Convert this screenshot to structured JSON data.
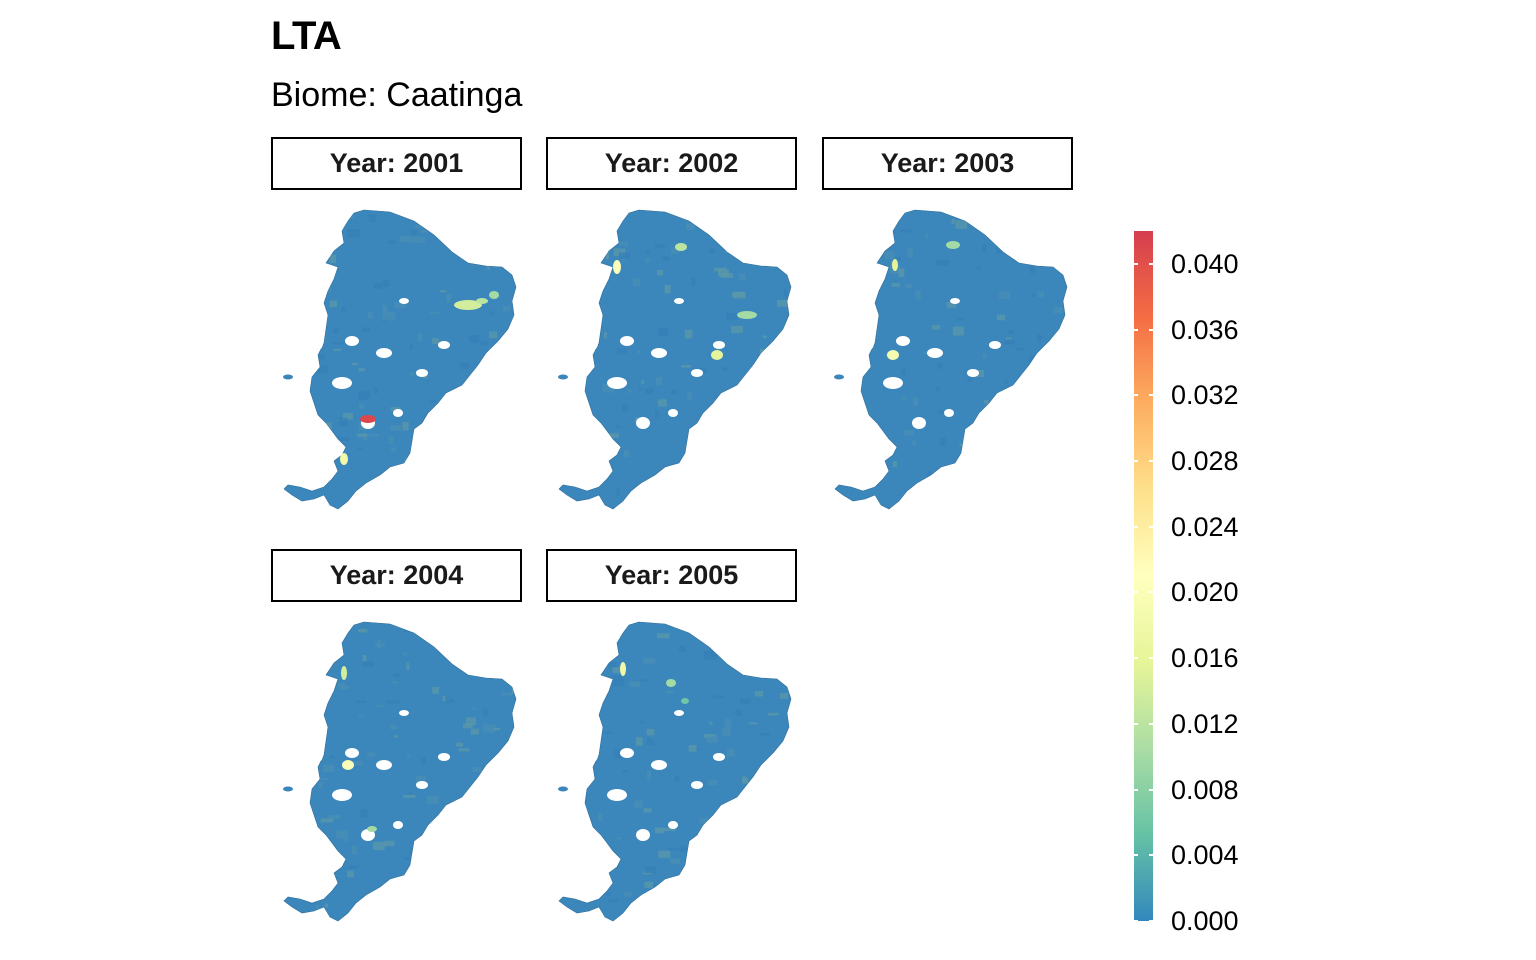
{
  "title": "LTA",
  "subtitle": "Biome: Caatinga",
  "chart_data": {
    "type": "choropleth-facet",
    "title": "LTA",
    "subtitle": "Biome: Caatinga",
    "facets": [
      {
        "label": "Year: 2001",
        "max_value": 0.041,
        "highlights": [
          {
            "value": 0.041
          },
          {
            "value": 0.018
          },
          {
            "value": 0.014
          },
          {
            "value": 0.012
          },
          {
            "value": 0.01
          }
        ]
      },
      {
        "label": "Year: 2002",
        "max_value": 0.02,
        "highlights": [
          {
            "value": 0.02
          },
          {
            "value": 0.016
          },
          {
            "value": 0.012
          },
          {
            "value": 0.01
          }
        ]
      },
      {
        "label": "Year: 2003",
        "max_value": 0.019,
        "highlights": [
          {
            "value": 0.019
          },
          {
            "value": 0.016
          },
          {
            "value": 0.01
          }
        ]
      },
      {
        "label": "Year: 2004",
        "max_value": 0.02,
        "highlights": [
          {
            "value": 0.02
          },
          {
            "value": 0.014
          },
          {
            "value": 0.01
          }
        ]
      },
      {
        "label": "Year: 2005",
        "max_value": 0.018,
        "highlights": [
          {
            "value": 0.018
          },
          {
            "value": 0.01
          },
          {
            "value": 0.006
          }
        ]
      }
    ],
    "legend": {
      "min": 0.0,
      "max": 0.042,
      "ticks": [
        "0.000",
        "0.004",
        "0.008",
        "0.012",
        "0.016",
        "0.020",
        "0.024",
        "0.028",
        "0.032",
        "0.036",
        "0.040"
      ],
      "tick_values": [
        0.0,
        0.004,
        0.008,
        0.012,
        0.016,
        0.02,
        0.024,
        0.028,
        0.032,
        0.036,
        0.04
      ],
      "palette": [
        "#3288bd",
        "#66c2a5",
        "#abdda4",
        "#e6f598",
        "#ffffbf",
        "#fee08b",
        "#fdae61",
        "#f46d43",
        "#d53e4f"
      ],
      "placement": "right"
    },
    "base_color": "#3b86bb"
  }
}
